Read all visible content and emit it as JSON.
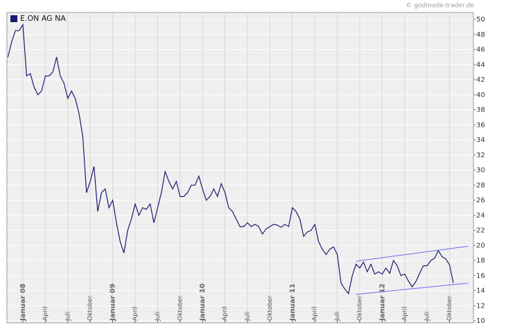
{
  "chart_data": {
    "type": "line",
    "source": "© godmode-trader.de",
    "categories": [
      null,
      null,
      null,
      null,
      "Januar 08",
      null,
      null,
      null,
      null,
      null,
      "April",
      null,
      null,
      null,
      null,
      null,
      "Juli",
      null,
      null,
      null,
      null,
      null,
      "Oktober",
      null,
      null,
      null,
      null,
      null,
      "Januar 09",
      null,
      null,
      null,
      null,
      null,
      "April",
      null,
      null,
      null,
      null,
      null,
      "Juli",
      null,
      null,
      null,
      null,
      null,
      "Oktober",
      null,
      null,
      null,
      null,
      null,
      "Januar 10",
      null,
      null,
      null,
      null,
      null,
      "April",
      null,
      null,
      null,
      null,
      null,
      "Juli",
      null,
      null,
      null,
      null,
      null,
      "Oktober",
      null,
      null,
      null,
      null,
      null,
      "Januar 11",
      null,
      null,
      null,
      null,
      null,
      "April",
      null,
      null,
      null,
      null,
      null,
      "Juli",
      null,
      null,
      null,
      null,
      null,
      "Oktober",
      null,
      null,
      null,
      null,
      null,
      "Januar 12",
      null,
      null,
      null,
      null,
      null,
      "April",
      null,
      null,
      null,
      null,
      null,
      "Juli",
      null,
      null,
      null,
      null,
      null,
      "Oktober",
      null,
      null,
      null,
      null,
      null
    ],
    "series": [
      {
        "name": "E.ON AG NA",
        "color": "#1a1a6e",
        "values": [
          45,
          47,
          48.5,
          48.5,
          49.3,
          42.5,
          42.8,
          41,
          40,
          40.5,
          42.5,
          42.5,
          43,
          45,
          42.5,
          41.5,
          39.5,
          40.5,
          39.5,
          37.5,
          34.5,
          27,
          28.5,
          30.5,
          24.5,
          27,
          27.5,
          25,
          26,
          23,
          20.5,
          19,
          22,
          23.5,
          25.5,
          24,
          25,
          24.8,
          25.5,
          23,
          25,
          27,
          29.8,
          28.5,
          27.5,
          28.5,
          26.5,
          26.5,
          27,
          28,
          28,
          29.2,
          27.5,
          26,
          26.5,
          27.5,
          26.5,
          28.2,
          27,
          25,
          24.5,
          23.5,
          22.5,
          22.5,
          23,
          22.5,
          22.8,
          22.5,
          21.5,
          22.2,
          22.5,
          22.8,
          22.7,
          22.4,
          22.8,
          22.5,
          25,
          24.5,
          23.5,
          21.2,
          21.8,
          22,
          22.8,
          20.5,
          19.5,
          18.8,
          19.5,
          19.8,
          18.8,
          15,
          14.2,
          13.6,
          16,
          17.5,
          17,
          17.8,
          16.5,
          17.5,
          16.2,
          16.5,
          16.2,
          17,
          16.3,
          18,
          17.3,
          16,
          16.2,
          15.3,
          14.5,
          15.2,
          16.3,
          17.3,
          17.3,
          18,
          18.3,
          19.3,
          18.5,
          18.2,
          17.4,
          15,
          null,
          null,
          null,
          null
        ]
      },
      {
        "color": "#6b6bf0",
        "values": [
          null,
          null,
          null,
          null,
          null,
          null,
          null,
          null,
          null,
          null,
          null,
          null,
          null,
          null,
          null,
          null,
          null,
          null,
          null,
          null,
          null,
          null,
          null,
          null,
          null,
          null,
          null,
          null,
          null,
          null,
          null,
          null,
          null,
          null,
          null,
          null,
          null,
          null,
          null,
          null,
          null,
          null,
          null,
          null,
          null,
          null,
          null,
          null,
          null,
          null,
          null,
          null,
          null,
          null,
          null,
          null,
          null,
          null,
          null,
          null,
          null,
          null,
          null,
          null,
          null,
          null,
          null,
          null,
          null,
          null,
          null,
          null,
          null,
          null,
          null,
          null,
          null,
          null,
          null,
          null,
          null,
          null,
          null,
          null,
          null,
          null,
          null,
          null,
          null,
          null,
          null,
          null,
          null,
          17.9,
          17.97,
          18.03,
          18.1,
          18.17,
          18.23,
          18.3,
          18.37,
          18.43,
          18.5,
          18.57,
          18.63,
          18.7,
          18.77,
          18.83,
          18.9,
          18.97,
          19.03,
          19.1,
          19.17,
          19.23,
          19.3,
          19.37,
          19.43,
          19.5,
          19.57,
          19.63,
          19.7,
          19.77,
          19.83,
          19.9
        ]
      },
      {
        "color": "#6b6bf0",
        "values": [
          null,
          null,
          null,
          null,
          null,
          null,
          null,
          null,
          null,
          null,
          null,
          null,
          null,
          null,
          null,
          null,
          null,
          null,
          null,
          null,
          null,
          null,
          null,
          null,
          null,
          null,
          null,
          null,
          null,
          null,
          null,
          null,
          null,
          null,
          null,
          null,
          null,
          null,
          null,
          null,
          null,
          null,
          null,
          null,
          null,
          null,
          null,
          null,
          null,
          null,
          null,
          null,
          null,
          null,
          null,
          null,
          null,
          null,
          null,
          null,
          null,
          null,
          null,
          null,
          null,
          null,
          null,
          null,
          null,
          null,
          null,
          null,
          null,
          null,
          null,
          null,
          null,
          null,
          null,
          null,
          null,
          null,
          null,
          null,
          null,
          null,
          null,
          null,
          null,
          null,
          null,
          null,
          null,
          13.5,
          13.55,
          13.6,
          13.65,
          13.7,
          13.75,
          13.8,
          13.85,
          13.9,
          13.95,
          14,
          14.05,
          14.1,
          14.15,
          14.2,
          14.25,
          14.3,
          14.35,
          14.4,
          14.45,
          14.5,
          14.55,
          14.6,
          14.65,
          14.7,
          14.75,
          14.8,
          14.85,
          14.9,
          14.95,
          15
        ]
      }
    ],
    "ylim": [
      10,
      50
    ],
    "yticks": [
      10,
      12,
      14,
      16,
      18,
      20,
      22,
      24,
      26,
      28,
      30,
      32,
      34,
      36,
      38,
      40,
      42,
      44,
      46,
      48,
      50
    ],
    "grid": true
  }
}
